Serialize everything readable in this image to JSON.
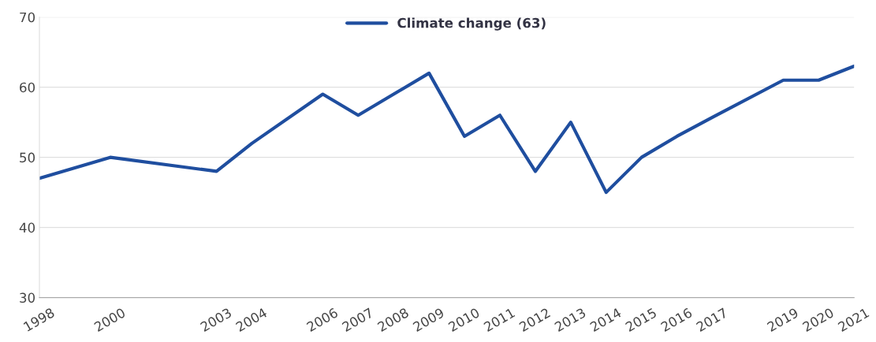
{
  "chart_data": {
    "type": "line",
    "x": [
      1998,
      2000,
      2003,
      2004,
      2006,
      2007,
      2008,
      2009,
      2010,
      2011,
      2012,
      2013,
      2014,
      2015,
      2016,
      2017,
      2019,
      2020,
      2021
    ],
    "series": [
      {
        "name": "Climate change (63)",
        "color": "#1f4e9f",
        "values": [
          47,
          50,
          48,
          52,
          59,
          56,
          59,
          62,
          53,
          56,
          48,
          55,
          45,
          50,
          53,
          55.7,
          61,
          61,
          63
        ]
      }
    ],
    "xlim": [
      1998,
      2021
    ],
    "xticks": [
      1998,
      2000,
      2003,
      2004,
      2006,
      2007,
      2008,
      2009,
      2010,
      2011,
      2012,
      2013,
      2014,
      2015,
      2016,
      2017,
      2019,
      2020,
      2021
    ],
    "ylim": [
      30,
      70
    ],
    "yticks": [
      30,
      40,
      50,
      60,
      70
    ],
    "grid": "y",
    "legend": "top",
    "marker": "none",
    "line_style": "solid"
  }
}
